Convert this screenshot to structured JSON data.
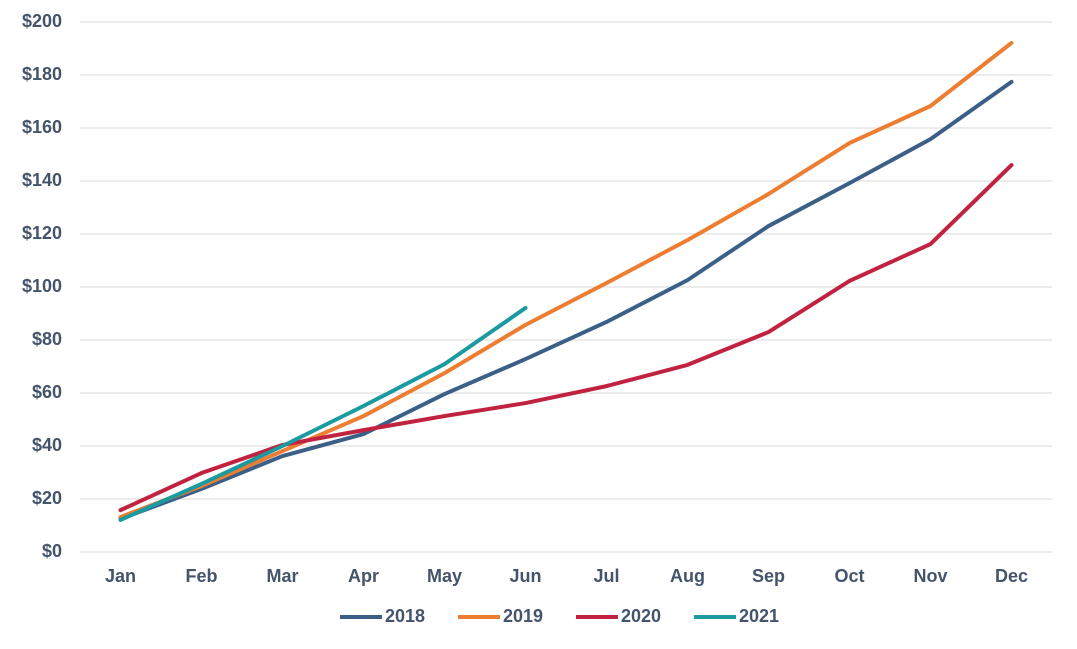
{
  "chart_data": {
    "type": "line",
    "categories": [
      "Jan",
      "Feb",
      "Mar",
      "Apr",
      "May",
      "Jun",
      "Jul",
      "Aug",
      "Sep",
      "Oct",
      "Nov",
      "Dec"
    ],
    "series": [
      {
        "name": "2018",
        "color": "#3b5f86",
        "values": [
          12.5,
          23.8,
          36.2,
          44.5,
          59.6,
          72.8,
          86.8,
          102.6,
          123,
          139.2,
          155.8,
          177.4
        ]
      },
      {
        "name": "2019",
        "color": "#ed7d31",
        "values": [
          13.2,
          24.9,
          38.1,
          51.3,
          67.5,
          85.7,
          101.5,
          117.7,
          135.1,
          154.3,
          168.3,
          192.1
        ]
      },
      {
        "name": "2020",
        "color": "#c0223f",
        "values": [
          15.8,
          29.8,
          40.4,
          46,
          51.3,
          56.2,
          62.6,
          70.6,
          83,
          102.3,
          116.2,
          146
        ]
      },
      {
        "name": "2021",
        "color": "#1b9aa0",
        "values": [
          12.1,
          25.7,
          40,
          55.1,
          70.9,
          92.1,
          null,
          null,
          null,
          null,
          null,
          null
        ]
      }
    ],
    "ylim": [
      0,
      200
    ],
    "yticks": [
      {
        "value": 0,
        "label": "$0"
      },
      {
        "value": 20,
        "label": "$20"
      },
      {
        "value": 40,
        "label": "$40"
      },
      {
        "value": 60,
        "label": "$60"
      },
      {
        "value": 80,
        "label": "$80"
      },
      {
        "value": 100,
        "label": "$100"
      },
      {
        "value": 120,
        "label": "$120"
      },
      {
        "value": 140,
        "label": "$140"
      },
      {
        "value": 160,
        "label": "$160"
      },
      {
        "value": 180,
        "label": "$180"
      },
      {
        "value": 200,
        "label": "$200"
      }
    ],
    "grid": true,
    "legend": "bottom"
  }
}
